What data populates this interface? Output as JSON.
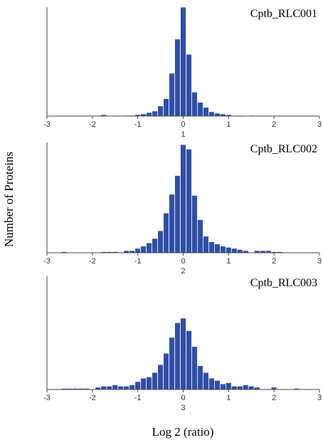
{
  "figure": {
    "ylabel": "Number of Proteins",
    "xlabel": "Log 2 (ratio)"
  },
  "colors": {
    "bar_fill": "#2f4fa8",
    "bar_edge": "#ffffff",
    "axis": "#444444"
  },
  "chart_data": [
    {
      "type": "bar",
      "title": "Cptb_RLC001",
      "panel_label": "1",
      "xlim": [
        -3,
        3
      ],
      "ylim": [
        0,
        150
      ],
      "bin_width": 0.125,
      "xticks": [
        "-3",
        "-2",
        "-1",
        "0",
        "1",
        "2",
        "3"
      ],
      "bins": [
        {
          "x": -1.75,
          "y": 2
        },
        {
          "x": -1.25,
          "y": 1
        },
        {
          "x": -1.125,
          "y": 1
        },
        {
          "x": -1.0,
          "y": 2
        },
        {
          "x": -0.875,
          "y": 3
        },
        {
          "x": -0.75,
          "y": 5
        },
        {
          "x": -0.625,
          "y": 7
        },
        {
          "x": -0.5,
          "y": 14
        },
        {
          "x": -0.375,
          "y": 24
        },
        {
          "x": -0.25,
          "y": 59
        },
        {
          "x": -0.125,
          "y": 106
        },
        {
          "x": 0.0,
          "y": 150
        },
        {
          "x": 0.125,
          "y": 85
        },
        {
          "x": 0.25,
          "y": 33
        },
        {
          "x": 0.375,
          "y": 19
        },
        {
          "x": 0.5,
          "y": 12
        },
        {
          "x": 0.625,
          "y": 6
        },
        {
          "x": 0.75,
          "y": 4
        },
        {
          "x": 0.875,
          "y": 3
        },
        {
          "x": 1.0,
          "y": 2
        },
        {
          "x": 1.25,
          "y": 1
        },
        {
          "x": 1.5,
          "y": 1
        }
      ]
    },
    {
      "type": "bar",
      "title": "Cptb_RLC002",
      "panel_label": "2",
      "xlim": [
        -3,
        3
      ],
      "ylim": [
        0,
        100
      ],
      "bin_width": 0.125,
      "xticks": [
        "-3",
        "-2",
        "-1",
        "0",
        "1",
        "2",
        "3"
      ],
      "bins": [
        {
          "x": -2.625,
          "y": 1
        },
        {
          "x": -1.75,
          "y": 1
        },
        {
          "x": -1.625,
          "y": 1
        },
        {
          "x": -1.5,
          "y": 1
        },
        {
          "x": -1.25,
          "y": 2
        },
        {
          "x": -1.125,
          "y": 2
        },
        {
          "x": -1.0,
          "y": 4
        },
        {
          "x": -0.875,
          "y": 6
        },
        {
          "x": -0.75,
          "y": 9
        },
        {
          "x": -0.625,
          "y": 13
        },
        {
          "x": -0.5,
          "y": 20
        },
        {
          "x": -0.375,
          "y": 36
        },
        {
          "x": -0.25,
          "y": 53
        },
        {
          "x": -0.125,
          "y": 70
        },
        {
          "x": 0.0,
          "y": 98
        },
        {
          "x": 0.125,
          "y": 94
        },
        {
          "x": 0.25,
          "y": 52
        },
        {
          "x": 0.375,
          "y": 30
        },
        {
          "x": 0.5,
          "y": 15
        },
        {
          "x": 0.625,
          "y": 10
        },
        {
          "x": 0.75,
          "y": 8
        },
        {
          "x": 0.875,
          "y": 6
        },
        {
          "x": 1.0,
          "y": 5
        },
        {
          "x": 1.125,
          "y": 4
        },
        {
          "x": 1.25,
          "y": 3
        },
        {
          "x": 1.375,
          "y": 2
        },
        {
          "x": 1.625,
          "y": 2
        },
        {
          "x": 1.75,
          "y": 2
        },
        {
          "x": 1.875,
          "y": 2
        },
        {
          "x": 2.0,
          "y": 1
        },
        {
          "x": 2.125,
          "y": 1
        }
      ]
    },
    {
      "type": "bar",
      "title": "Cptb_RLC003",
      "panel_label": "3",
      "xlim": [
        -3,
        3
      ],
      "ylim": [
        0,
        100
      ],
      "bin_width": 0.125,
      "xticks": [
        "-3",
        "-2",
        "-1",
        "0",
        "1",
        "2",
        "3"
      ],
      "bins": [
        {
          "x": -2.625,
          "y": 1
        },
        {
          "x": -2.5,
          "y": 1
        },
        {
          "x": -2.375,
          "y": 1
        },
        {
          "x": -2.25,
          "y": 1
        },
        {
          "x": -2.125,
          "y": 1
        },
        {
          "x": -1.875,
          "y": 2
        },
        {
          "x": -1.75,
          "y": 3
        },
        {
          "x": -1.625,
          "y": 3
        },
        {
          "x": -1.5,
          "y": 4
        },
        {
          "x": -1.375,
          "y": 3
        },
        {
          "x": -1.25,
          "y": 3
        },
        {
          "x": -1.125,
          "y": 4
        },
        {
          "x": -1.0,
          "y": 7
        },
        {
          "x": -0.875,
          "y": 10
        },
        {
          "x": -0.75,
          "y": 11
        },
        {
          "x": -0.625,
          "y": 15
        },
        {
          "x": -0.5,
          "y": 22
        },
        {
          "x": -0.375,
          "y": 32
        },
        {
          "x": -0.25,
          "y": 46
        },
        {
          "x": -0.125,
          "y": 59
        },
        {
          "x": 0.0,
          "y": 63
        },
        {
          "x": 0.125,
          "y": 52
        },
        {
          "x": 0.25,
          "y": 38
        },
        {
          "x": 0.375,
          "y": 21
        },
        {
          "x": 0.5,
          "y": 15
        },
        {
          "x": 0.625,
          "y": 10
        },
        {
          "x": 0.75,
          "y": 8
        },
        {
          "x": 0.875,
          "y": 5
        },
        {
          "x": 1.0,
          "y": 6
        },
        {
          "x": 1.125,
          "y": 3
        },
        {
          "x": 1.25,
          "y": 3
        },
        {
          "x": 1.375,
          "y": 4
        },
        {
          "x": 1.5,
          "y": 3
        },
        {
          "x": 1.625,
          "y": 2
        },
        {
          "x": 2.0,
          "y": 2
        },
        {
          "x": 2.5,
          "y": 1
        }
      ]
    }
  ]
}
